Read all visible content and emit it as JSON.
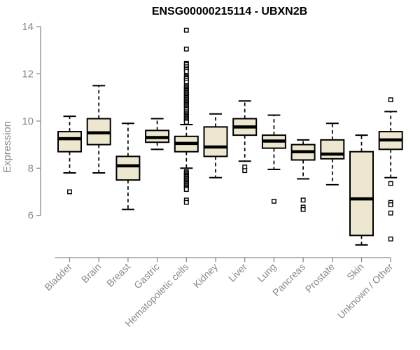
{
  "page": {
    "title": "ENSG00000215114 - UBXN2B"
  },
  "chart_data": {
    "type": "boxplot",
    "title": "ENSG00000215114 - UBXN2B",
    "xlabel": "",
    "ylabel": "Expression",
    "ylim": [
      4.5,
      14
    ],
    "yticks": [
      6,
      8,
      10,
      12,
      14
    ],
    "grid": false,
    "legend": false,
    "categories": [
      "Bladder",
      "Brain",
      "Breast",
      "Gastric",
      "Hematopoietic cells",
      "Kidney",
      "Liver",
      "Lung",
      "Pancreas",
      "Prostate",
      "Skin",
      "Unknown / Other"
    ],
    "boxes": [
      {
        "category": "Bladder",
        "whisker_low": 7.8,
        "q1": 8.7,
        "median": 9.25,
        "q3": 9.55,
        "whisker_high": 10.2,
        "outliers": [
          7.0
        ]
      },
      {
        "category": "Brain",
        "whisker_low": 7.8,
        "q1": 9.0,
        "median": 9.5,
        "q3": 10.1,
        "whisker_high": 11.5,
        "outliers": []
      },
      {
        "category": "Breast",
        "whisker_low": 6.25,
        "q1": 7.5,
        "median": 8.1,
        "q3": 8.5,
        "whisker_high": 9.9,
        "outliers": []
      },
      {
        "category": "Gastric",
        "whisker_low": 8.8,
        "q1": 9.1,
        "median": 9.3,
        "q3": 9.6,
        "whisker_high": 10.1,
        "outliers": []
      },
      {
        "category": "Hematopoietic cells",
        "whisker_low": 8.0,
        "q1": 8.7,
        "median": 9.05,
        "q3": 9.35,
        "whisker_high": 9.85,
        "outliers": [
          13.85,
          13.05,
          12.45,
          12.4,
          12.32,
          12.25,
          12.18,
          12.1,
          11.9,
          11.85,
          11.8,
          11.72,
          11.65,
          11.5,
          11.45,
          11.4,
          11.35,
          11.3,
          11.25,
          11.2,
          11.15,
          11.1,
          11.05,
          11.0,
          10.95,
          10.9,
          10.85,
          10.8,
          10.75,
          10.7,
          10.65,
          10.6,
          10.55,
          10.5,
          10.42,
          10.35,
          10.3,
          10.25,
          10.2,
          10.15,
          10.1,
          10.05,
          10.0,
          9.95,
          7.85,
          7.8,
          7.75,
          7.7,
          7.65,
          7.6,
          7.55,
          7.5,
          7.45,
          7.4,
          7.35,
          7.3,
          7.25,
          7.2,
          7.15,
          7.1,
          6.65,
          6.55
        ]
      },
      {
        "category": "Kidney",
        "whisker_low": 7.6,
        "q1": 8.5,
        "median": 8.9,
        "q3": 9.75,
        "whisker_high": 10.3,
        "outliers": []
      },
      {
        "category": "Liver",
        "whisker_low": 8.3,
        "q1": 9.4,
        "median": 9.75,
        "q3": 10.1,
        "whisker_high": 10.85,
        "outliers": [
          8.05,
          7.9
        ]
      },
      {
        "category": "Lung",
        "whisker_low": 7.95,
        "q1": 8.85,
        "median": 9.15,
        "q3": 9.4,
        "whisker_high": 10.25,
        "outliers": [
          6.6
        ]
      },
      {
        "category": "Pancreas",
        "whisker_low": 7.55,
        "q1": 8.35,
        "median": 8.7,
        "q3": 9.0,
        "whisker_high": 9.2,
        "outliers": [
          6.65,
          6.35,
          6.25
        ]
      },
      {
        "category": "Prostate",
        "whisker_low": 7.3,
        "q1": 8.4,
        "median": 8.6,
        "q3": 9.2,
        "whisker_high": 9.9,
        "outliers": []
      },
      {
        "category": "Skin",
        "whisker_low": 4.75,
        "q1": 5.15,
        "median": 6.7,
        "q3": 8.7,
        "whisker_high": 9.4,
        "outliers": []
      },
      {
        "category": "Unknown / Other",
        "whisker_low": 7.6,
        "q1": 8.8,
        "median": 9.2,
        "q3": 9.55,
        "whisker_high": 10.4,
        "outliers": [
          10.9,
          7.35,
          6.55,
          6.45,
          6.1,
          5.0
        ]
      }
    ],
    "colors": {
      "box_fill": "#ece7ce",
      "box_border": "#000000",
      "median_line": "#000000",
      "whisker": "#000000",
      "outlier_stroke": "#000000",
      "outlier_fill": "#ffffff",
      "axis": "#8a8a8a",
      "title": "#000000"
    }
  }
}
